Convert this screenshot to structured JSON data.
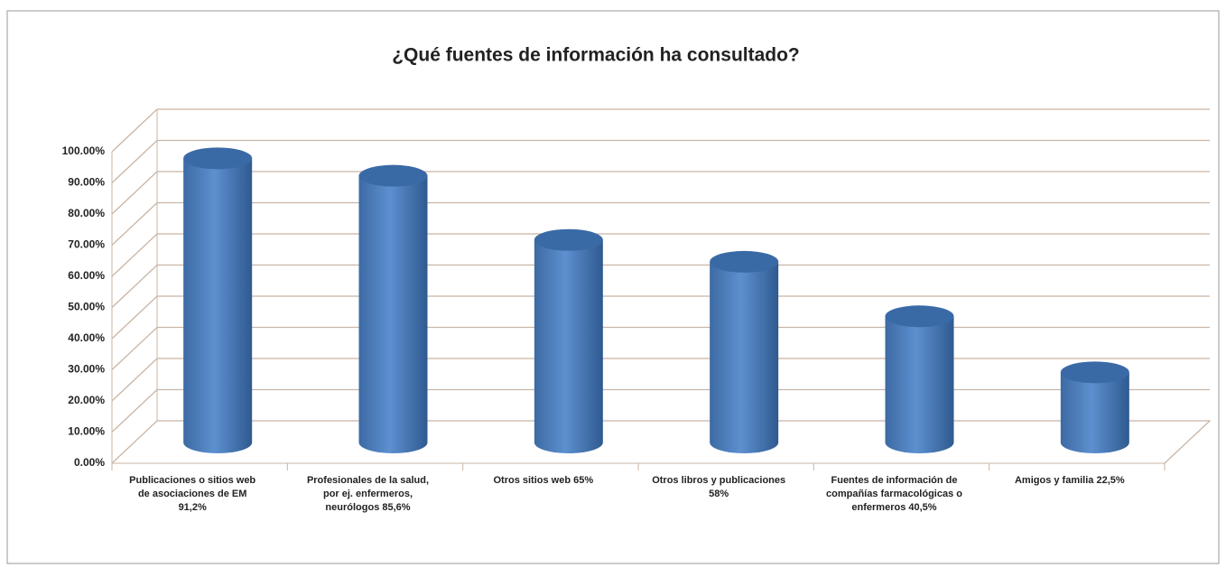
{
  "chart_data": {
    "type": "bar3d",
    "title": "¿Qué fuentes de información ha consultado?",
    "categories": [
      "Publicaciones o sitios web de asociaciones de EM  91,2%",
      "Profesionales de la salud, por ej. enfermeros, neurólogos 85,6%",
      "Otros sitios web  65%",
      "Otros libros y publicaciones 58%",
      "Fuentes de información de compañías farmacológicas o enfermeros 40,5%",
      "Amigos y familia 22,5%"
    ],
    "values": [
      91.2,
      85.6,
      65,
      58,
      40.5,
      22.5
    ],
    "color": "#4f81bd",
    "ylim": [
      0,
      100
    ],
    "yticks": [
      {
        "value": 0,
        "label": "0.00%"
      },
      {
        "value": 10,
        "label": "10.00%"
      },
      {
        "value": 20,
        "label": "20.00%"
      },
      {
        "value": 30,
        "label": "30.00%"
      },
      {
        "value": 40,
        "label": "40.00%"
      },
      {
        "value": 50,
        "label": "50.00%"
      },
      {
        "value": 60,
        "label": "60.00%"
      },
      {
        "value": 70,
        "label": "70.00%"
      },
      {
        "value": 80,
        "label": "80.00%"
      },
      {
        "value": 90,
        "label": "90.00%"
      },
      {
        "value": 100,
        "label": "100.00%"
      }
    ],
    "grid": true
  }
}
